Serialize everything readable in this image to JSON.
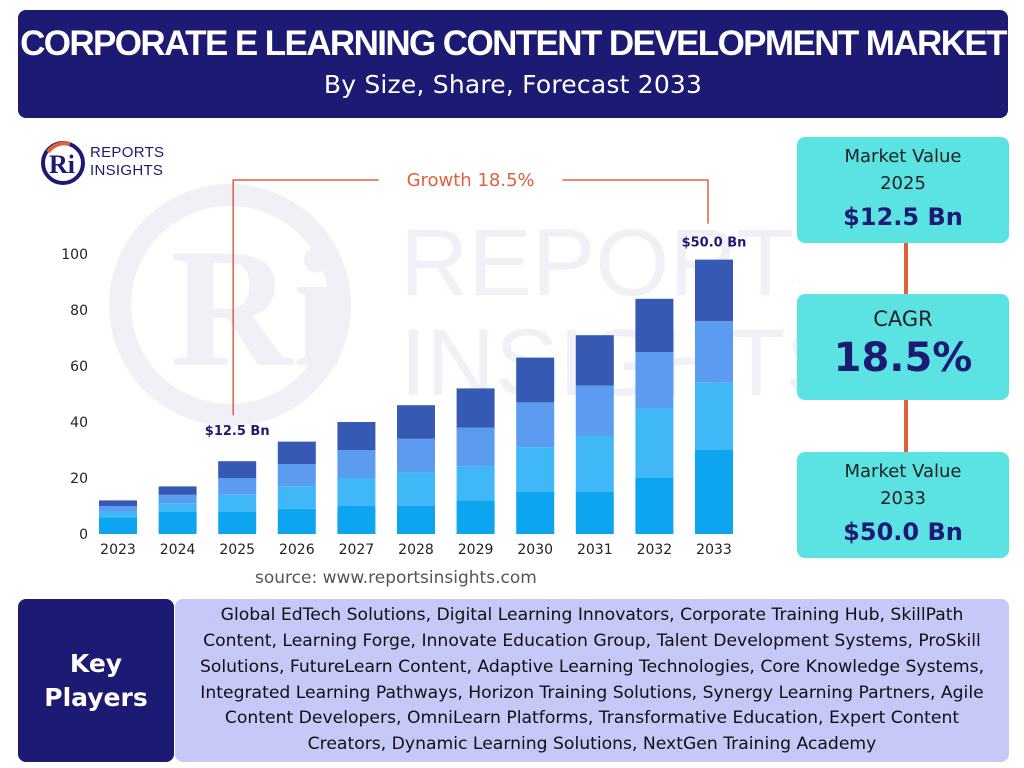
{
  "header": {
    "title": "CORPORATE E LEARNING CONTENT DEVELOPMENT MARKET",
    "subtitle": "By Size, Share, Forecast 2033"
  },
  "logo": {
    "line1": "REPORTS",
    "line2": "INSIGHTS"
  },
  "colors": {
    "navy": "#1d1a73",
    "cyan_card": "#5be3e3",
    "accent_orange": "#e0603e",
    "players_bg": "#c6c8f7"
  },
  "chart_data": {
    "type": "bar",
    "stacked": true,
    "categories": [
      "2023",
      "2024",
      "2025",
      "2026",
      "2027",
      "2028",
      "2029",
      "2030",
      "2031",
      "2032",
      "2033"
    ],
    "series": [
      {
        "color": "#0ea5f0",
        "values": [
          6,
          8,
          8,
          9,
          10,
          10,
          12,
          15,
          15,
          20,
          30
        ]
      },
      {
        "color": "#40b8f8",
        "values": [
          2,
          3,
          6,
          8,
          10,
          12,
          12,
          16,
          20,
          25,
          24
        ]
      },
      {
        "color": "#5b9cf0",
        "values": [
          2,
          3,
          6,
          8,
          10,
          12,
          14,
          16,
          18,
          20,
          22
        ]
      },
      {
        "color": "#3659b3",
        "values": [
          2,
          3,
          6,
          8,
          10,
          12,
          14,
          16,
          18,
          19,
          22
        ]
      }
    ],
    "yticks": [
      0,
      20,
      40,
      60,
      80,
      100
    ],
    "ylim": [
      0,
      100
    ],
    "grid": false,
    "annotations": {
      "growth_label": "Growth",
      "growth_value": "18.5%",
      "label_2025": "$12.5 Bn",
      "label_2033": "$50.0 Bn"
    }
  },
  "source": "source: www.reportsinsights.com",
  "stats": {
    "market_value_2025": {
      "label_line1": "Market Value",
      "label_line2": "2025",
      "value": "$12.5 Bn"
    },
    "cagr": {
      "label": "CAGR",
      "value": "18.5%"
    },
    "market_value_2033": {
      "label_line1": "Market Value",
      "label_line2": "2033",
      "value": "$50.0 Bn"
    }
  },
  "key_players": {
    "title_line1": "Key",
    "title_line2": "Players",
    "list": "Global EdTech Solutions, Digital Learning Innovators, Corporate Training Hub, SkillPath Content, Learning Forge, Innovate Education Group, Talent Development Systems, ProSkill Solutions, FutureLearn Content, Adaptive Learning Technologies, Core Knowledge Systems, Integrated Learning Pathways, Horizon Training Solutions, Synergy Learning Partners, Agile Content Developers, OmniLearn Platforms, Transformative Education, Expert Content Creators, Dynamic Learning Solutions, NextGen Training Academy"
  }
}
